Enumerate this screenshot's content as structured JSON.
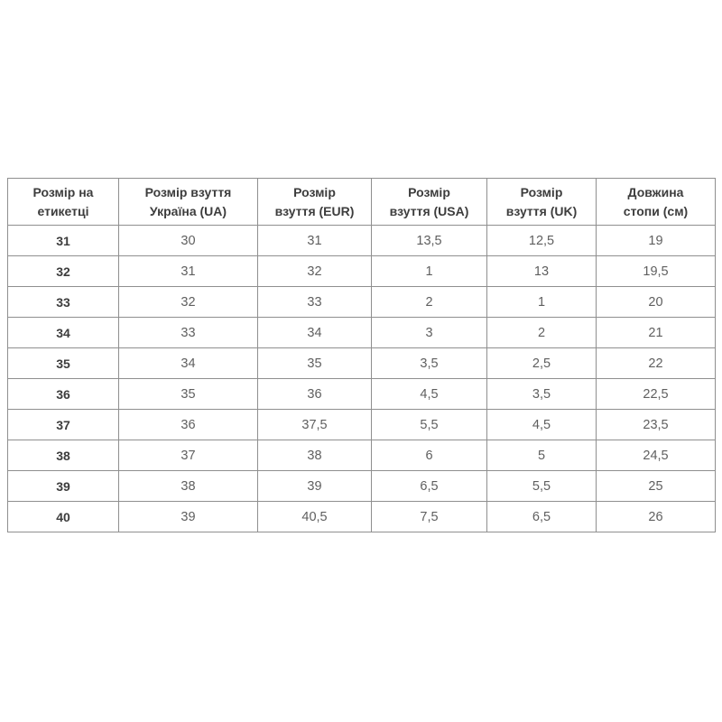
{
  "table": {
    "columns": [
      "Розмір на\nетикетці",
      "Розмір взуття\nУкраїна (UA)",
      "Розмір\nвзуття (EUR)",
      "Розмір\nвзуття (USA)",
      "Розмір\nвзуття (UK)",
      "Довжина\nстопи (см)"
    ],
    "rows": [
      [
        "31",
        "30",
        "31",
        "13,5",
        "12,5",
        "19"
      ],
      [
        "32",
        "31",
        "32",
        "1",
        "13",
        "19,5"
      ],
      [
        "33",
        "32",
        "33",
        "2",
        "1",
        "20"
      ],
      [
        "34",
        "33",
        "34",
        "3",
        "2",
        "21"
      ],
      [
        "35",
        "34",
        "35",
        "3,5",
        "2,5",
        "22"
      ],
      [
        "36",
        "35",
        "36",
        "4,5",
        "3,5",
        "22,5"
      ],
      [
        "37",
        "36",
        "37,5",
        "5,5",
        "4,5",
        "23,5"
      ],
      [
        "38",
        "37",
        "38",
        "6",
        "5",
        "24,5"
      ],
      [
        "39",
        "38",
        "39",
        "6,5",
        "5,5",
        "25"
      ],
      [
        "40",
        "39",
        "40,5",
        "7,5",
        "6,5",
        "26"
      ]
    ],
    "colors": {
      "border": "#8f8f8f",
      "header_text": "#3d3d3d",
      "cell_text": "#5f5f5f",
      "background": "#ffffff"
    }
  }
}
